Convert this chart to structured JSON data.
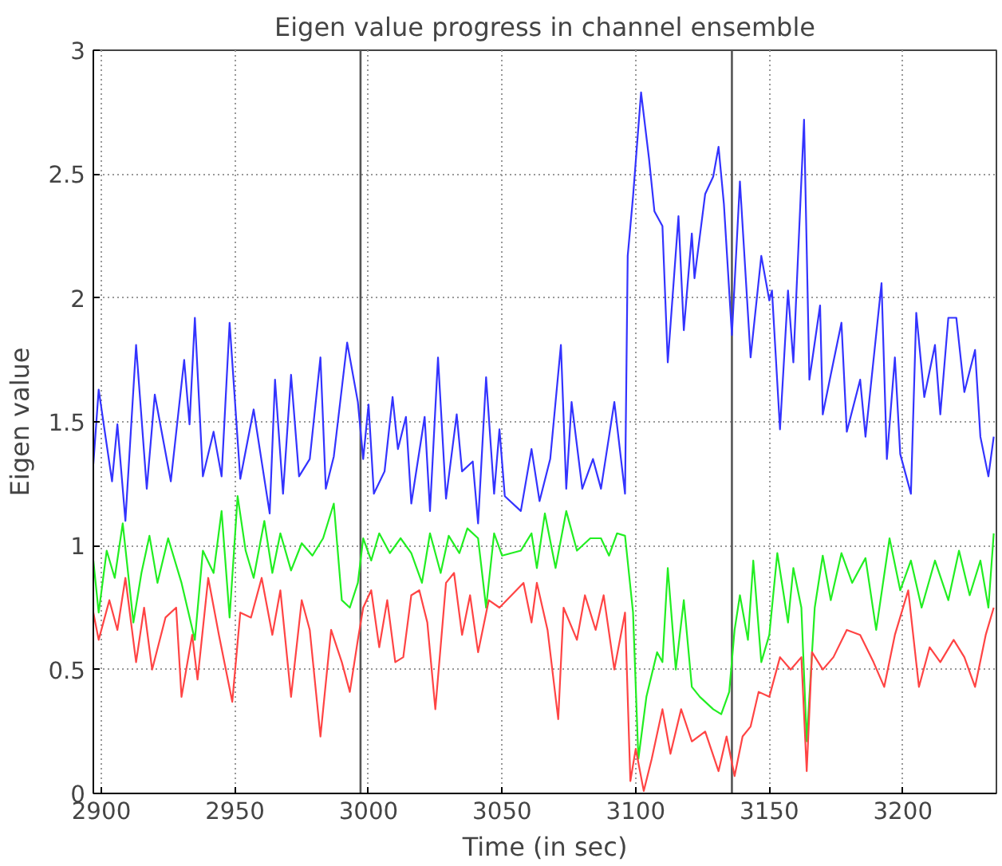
{
  "chart_data": {
    "type": "line",
    "title": "Eigen value progress in channel ensemble",
    "xlabel": "Time (in sec)",
    "ylabel": "Eigen value",
    "xlim": [
      2897,
      3235
    ],
    "ylim": [
      0,
      3
    ],
    "xticks": [
      2900,
      2950,
      3000,
      3050,
      3100,
      3150,
      3200
    ],
    "yticks": [
      0,
      0.5,
      1,
      1.5,
      2,
      2.5,
      3
    ],
    "grid": true,
    "line_style": "solid",
    "ref_lines": [
      {
        "axis": "x",
        "value": 2997,
        "color": "#555555"
      },
      {
        "axis": "x",
        "value": 3136,
        "color": "#555555"
      }
    ],
    "series": [
      {
        "color": "#3333ff",
        "x": [
          2897,
          2899,
          2904,
          2906,
          2909,
          2913,
          2917,
          2920,
          2926,
          2931,
          2933,
          2935,
          2938,
          2942,
          2945,
          2948,
          2952,
          2957,
          2963,
          2965,
          2968,
          2971,
          2974,
          2978,
          2982,
          2984,
          2987,
          2992,
          2996,
          2998,
          3000,
          3002,
          3006,
          3009,
          3011,
          3014,
          3016,
          3021,
          3023,
          3026,
          3029,
          3033,
          3035,
          3039,
          3041,
          3044,
          3047,
          3049,
          3051,
          3057,
          3061,
          3064,
          3068,
          3072,
          3074,
          3076,
          3080,
          3084,
          3087,
          3092,
          3096,
          3097,
          3099,
          3102,
          3105,
          3107,
          3110,
          3112,
          3116,
          3118,
          3121,
          3122,
          3126,
          3129,
          3131,
          3133,
          3136,
          3139,
          3143,
          3147,
          3150,
          3151,
          3154,
          3157,
          3159,
          3163,
          3165,
          3169,
          3170,
          3173,
          3177,
          3179,
          3184,
          3186,
          3192,
          3194,
          3197,
          3199,
          3203,
          3205,
          3208,
          3212,
          3214,
          3217,
          3220,
          3223,
          3227,
          3229,
          3232,
          3234
        ],
        "values": [
          1.33,
          1.63,
          1.26,
          1.49,
          1.1,
          1.81,
          1.23,
          1.61,
          1.26,
          1.75,
          1.49,
          1.92,
          1.28,
          1.46,
          1.28,
          1.9,
          1.27,
          1.55,
          1.13,
          1.67,
          1.21,
          1.69,
          1.28,
          1.35,
          1.76,
          1.23,
          1.36,
          1.82,
          1.58,
          1.35,
          1.57,
          1.21,
          1.3,
          1.6,
          1.39,
          1.52,
          1.17,
          1.52,
          1.14,
          1.76,
          1.19,
          1.53,
          1.3,
          1.34,
          1.09,
          1.68,
          1.21,
          1.47,
          1.2,
          1.14,
          1.39,
          1.18,
          1.35,
          1.81,
          1.23,
          1.58,
          1.23,
          1.35,
          1.23,
          1.58,
          1.21,
          2.17,
          2.41,
          2.83,
          2.56,
          2.35,
          2.29,
          1.74,
          2.33,
          1.87,
          2.26,
          2.08,
          2.42,
          2.49,
          2.61,
          2.38,
          1.85,
          2.47,
          1.76,
          2.17,
          1.99,
          2.03,
          1.47,
          2.03,
          1.74,
          2.72,
          1.67,
          1.97,
          1.53,
          1.69,
          1.9,
          1.46,
          1.67,
          1.44,
          2.06,
          1.35,
          1.76,
          1.37,
          1.21,
          1.94,
          1.6,
          1.81,
          1.53,
          1.92,
          1.92,
          1.62,
          1.79,
          1.44,
          1.28,
          1.44
        ]
      },
      {
        "color": "#22ee22",
        "x": [
          2897,
          2899,
          2902,
          2905,
          2908,
          2912,
          2915,
          2918,
          2921,
          2925,
          2930,
          2935,
          2938,
          2942,
          2945,
          2948,
          2951,
          2954,
          2957,
          2961,
          2964,
          2967,
          2971,
          2975,
          2979,
          2983,
          2987,
          2990,
          2993,
          2996,
          2998,
          3001,
          3004,
          3008,
          3012,
          3016,
          3020,
          3023,
          3027,
          3030,
          3034,
          3037,
          3041,
          3044,
          3047,
          3050,
          3057,
          3061,
          3063,
          3066,
          3070,
          3074,
          3078,
          3083,
          3087,
          3090,
          3093,
          3096,
          3099,
          3101,
          3104,
          3108,
          3110,
          3112,
          3115,
          3118,
          3121,
          3124,
          3129,
          3132,
          3135,
          3137,
          3139,
          3142,
          3144,
          3147,
          3150,
          3153,
          3157,
          3159,
          3162,
          3164,
          3167,
          3170,
          3173,
          3177,
          3181,
          3186,
          3190,
          3195,
          3199,
          3203,
          3207,
          3212,
          3217,
          3221,
          3225,
          3229,
          3232,
          3234
        ],
        "values": [
          0.94,
          0.73,
          0.98,
          0.87,
          1.09,
          0.69,
          0.89,
          1.04,
          0.85,
          1.03,
          0.85,
          0.62,
          0.98,
          0.89,
          1.14,
          0.71,
          1.2,
          0.98,
          0.87,
          1.1,
          0.89,
          1.05,
          0.9,
          1.01,
          0.96,
          1.03,
          1.17,
          0.78,
          0.75,
          0.85,
          1.03,
          0.94,
          1.05,
          0.97,
          1.03,
          0.97,
          0.85,
          1.05,
          0.89,
          1.04,
          0.97,
          1.07,
          1.03,
          0.75,
          1.05,
          0.96,
          0.98,
          1.05,
          0.91,
          1.13,
          0.91,
          1.14,
          0.98,
          1.03,
          1.03,
          0.96,
          1.05,
          1.04,
          0.73,
          0.14,
          0.39,
          0.57,
          0.53,
          0.91,
          0.5,
          0.78,
          0.43,
          0.39,
          0.34,
          0.32,
          0.41,
          0.66,
          0.8,
          0.62,
          0.94,
          0.53,
          0.64,
          0.97,
          0.69,
          0.91,
          0.75,
          0.21,
          0.75,
          0.96,
          0.78,
          0.97,
          0.85,
          0.95,
          0.66,
          1.03,
          0.82,
          0.94,
          0.75,
          0.94,
          0.78,
          0.98,
          0.8,
          0.94,
          0.75,
          1.05
        ]
      },
      {
        "color": "#ff4444",
        "x": [
          2897,
          2899,
          2903,
          2906,
          2909,
          2913,
          2916,
          2919,
          2924,
          2928,
          2930,
          2934,
          2936,
          2940,
          2944,
          2949,
          2952,
          2956,
          2960,
          2964,
          2967,
          2971,
          2975,
          2978,
          2982,
          2986,
          2990,
          2993,
          2996,
          2998,
          3001,
          3004,
          3007,
          3010,
          3013,
          3016,
          3019,
          3022,
          3025,
          3029,
          3032,
          3035,
          3038,
          3041,
          3045,
          3049,
          3058,
          3061,
          3063,
          3067,
          3071,
          3073,
          3078,
          3081,
          3085,
          3088,
          3092,
          3096,
          3098,
          3100,
          3103,
          3106,
          3110,
          3113,
          3117,
          3121,
          3126,
          3131,
          3134,
          3137,
          3140,
          3143,
          3146,
          3150,
          3154,
          3158,
          3162,
          3164,
          3166,
          3170,
          3174,
          3179,
          3184,
          3189,
          3193,
          3197,
          3202,
          3206,
          3210,
          3214,
          3219,
          3223,
          3227,
          3231,
          3234
        ],
        "values": [
          0.73,
          0.62,
          0.78,
          0.66,
          0.87,
          0.53,
          0.75,
          0.5,
          0.71,
          0.75,
          0.39,
          0.64,
          0.46,
          0.87,
          0.64,
          0.37,
          0.73,
          0.71,
          0.87,
          0.64,
          0.82,
          0.39,
          0.78,
          0.66,
          0.23,
          0.66,
          0.53,
          0.41,
          0.62,
          0.75,
          0.82,
          0.59,
          0.78,
          0.53,
          0.55,
          0.8,
          0.82,
          0.69,
          0.34,
          0.85,
          0.89,
          0.64,
          0.8,
          0.57,
          0.78,
          0.75,
          0.85,
          0.69,
          0.85,
          0.66,
          0.3,
          0.75,
          0.62,
          0.8,
          0.66,
          0.8,
          0.5,
          0.73,
          0.05,
          0.18,
          0.01,
          0.14,
          0.34,
          0.16,
          0.34,
          0.21,
          0.25,
          0.09,
          0.23,
          0.07,
          0.23,
          0.27,
          0.41,
          0.39,
          0.55,
          0.5,
          0.55,
          0.09,
          0.57,
          0.5,
          0.55,
          0.66,
          0.64,
          0.53,
          0.43,
          0.64,
          0.82,
          0.43,
          0.59,
          0.53,
          0.62,
          0.55,
          0.43,
          0.64,
          0.75
        ]
      }
    ]
  }
}
